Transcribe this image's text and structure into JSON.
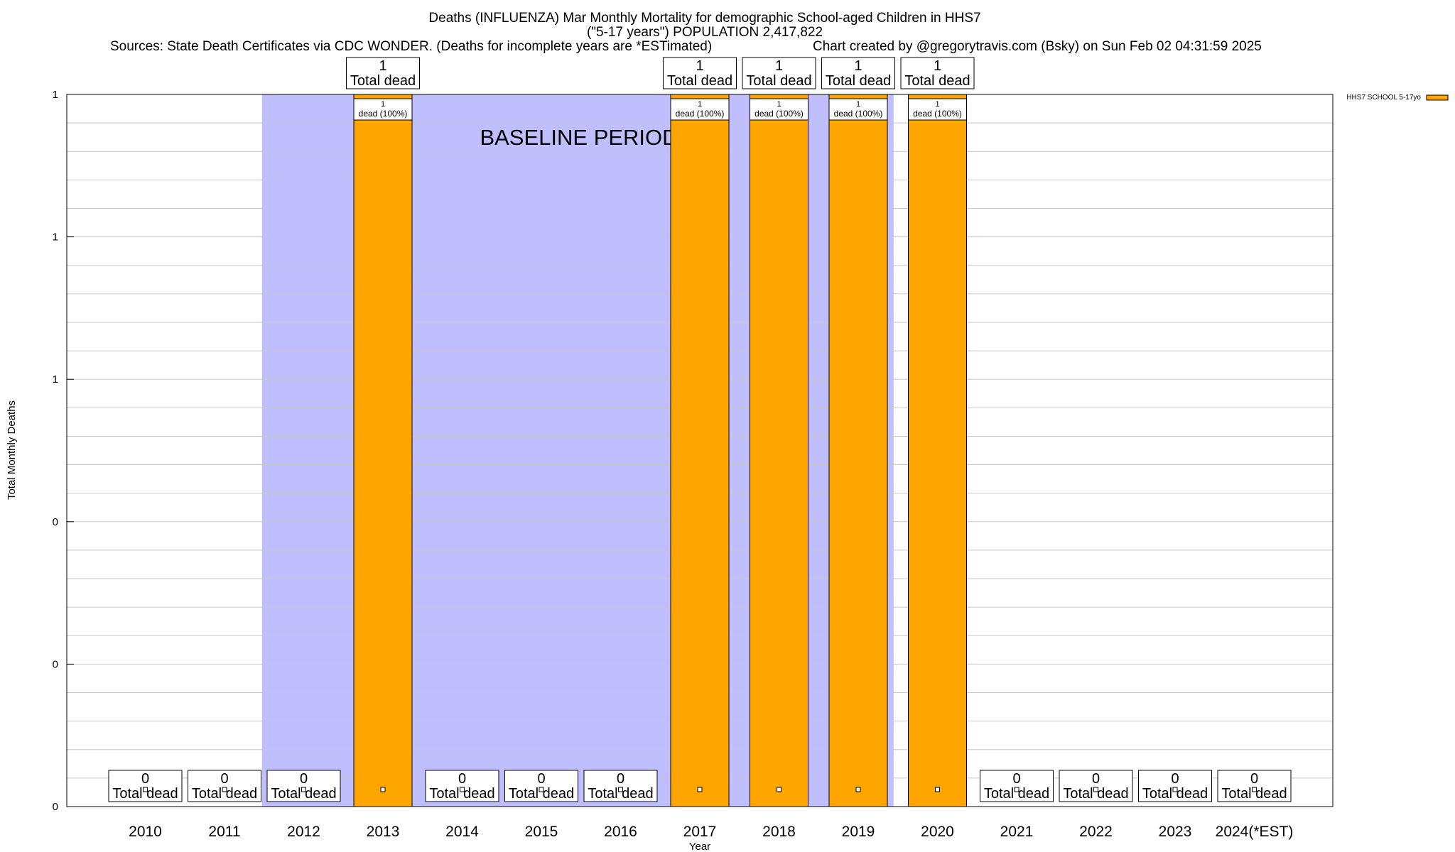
{
  "chart_data": {
    "type": "bar",
    "title_lines": [
      "Deaths (INFLUENZA) Mar Monthly Mortality for demographic School-aged Children in HHS7",
      "(\"5-17 years\") POPULATION 2,417,822"
    ],
    "sources_text": "Sources: State Death Certificates via CDC WONDER. (Deaths for incomplete years are *ESTimated)",
    "credit_text": "Chart created by @gregorytravis.com (Bsky) on Sun Feb 02 04:31:59 2025",
    "xlabel": "Year",
    "ylabel": "Total Monthly Deaths",
    "ylim": [
      0,
      1
    ],
    "y_ticks": [
      {
        "value": 0,
        "label": "0"
      },
      {
        "value": 0.2,
        "label": "0"
      },
      {
        "value": 0.4,
        "label": "0"
      },
      {
        "value": 0.6,
        "label": "1"
      },
      {
        "value": 0.8,
        "label": "1"
      },
      {
        "value": 1.0,
        "label": "1"
      }
    ],
    "minor_grid_step": 0.04,
    "categories": [
      "2010",
      "2011",
      "2012",
      "2013",
      "2014",
      "2015",
      "2016",
      "2017",
      "2018",
      "2019",
      "2020",
      "2021",
      "2022",
      "2023",
      "2024(*EST)"
    ],
    "series": [
      {
        "name": "HHS7 SCHOOL 5-17yo",
        "color": "#ffa500",
        "values": [
          0,
          0,
          0,
          1,
          0,
          0,
          0,
          1,
          1,
          1,
          1,
          0,
          0,
          0,
          0
        ]
      }
    ],
    "total_labels": [
      "0",
      "0",
      "0",
      "1",
      "0",
      "0",
      "0",
      "1",
      "1",
      "1",
      "1",
      "0",
      "0",
      "0",
      "0"
    ],
    "total_suffix": "Total dead",
    "segment_labels": [
      {
        "category": "2013",
        "value": "1",
        "text": "dead (100%)"
      },
      {
        "category": "2017",
        "value": "1",
        "text": "dead (100%)"
      },
      {
        "category": "2018",
        "value": "1",
        "text": "dead (100%)"
      },
      {
        "category": "2019",
        "value": "1",
        "text": "dead (100%)"
      },
      {
        "category": "2020",
        "value": "1",
        "text": "dead (100%)"
      }
    ],
    "baseline": {
      "label": "BASELINE PERIOD",
      "from_index": 2,
      "to_index": 9,
      "color": "#bfbfff"
    },
    "legend": {
      "position": "top-right",
      "label": "HHS7 SCHOOL 5-17yo"
    }
  }
}
